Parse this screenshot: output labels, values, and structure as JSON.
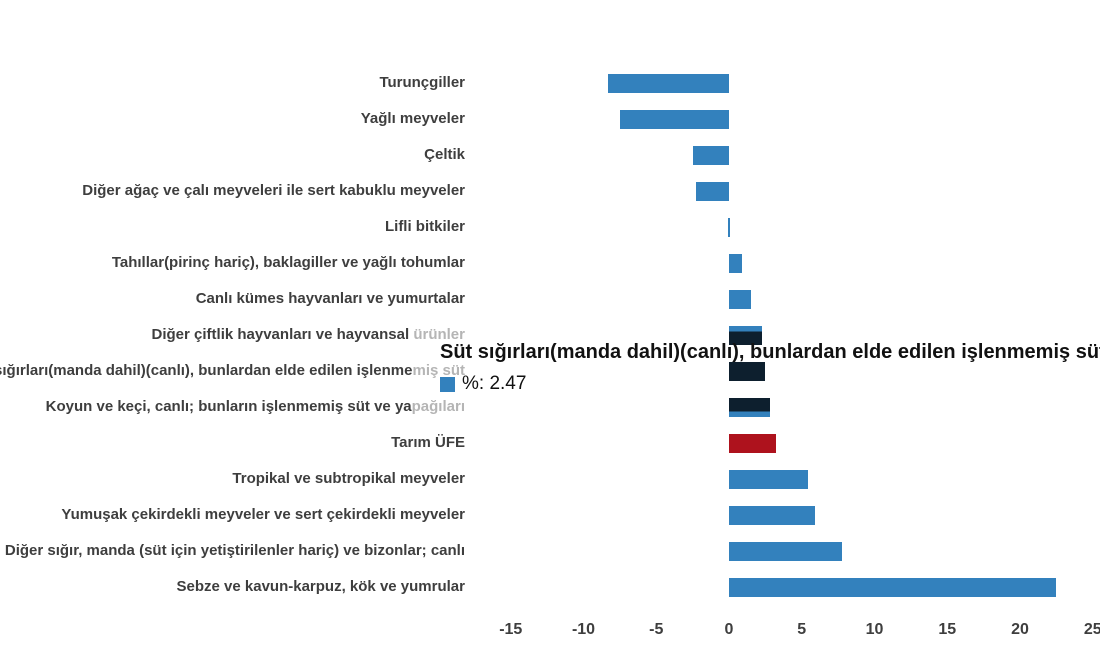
{
  "chart_data": {
    "type": "bar",
    "orientation": "horizontal",
    "unit": "%",
    "title": "",
    "xlabel": "",
    "ylabel": "",
    "xlim": [
      -15.8,
      25.5
    ],
    "grid": false,
    "legend": false,
    "x_ticks": [
      "-15",
      "-10",
      "-5",
      "0",
      "5",
      "10",
      "15",
      "20",
      "25"
    ],
    "x_tick_values": [
      -15,
      -10,
      -5,
      0,
      5,
      10,
      15,
      20,
      25
    ],
    "bars": [
      {
        "label": "Turunçgiller",
        "value": -8.3
      },
      {
        "label": "Yağlı meyveler",
        "value": -7.5
      },
      {
        "label": "Çeltik",
        "value": -2.5
      },
      {
        "label": "Diğer ağaç ve çalı meyveleri ile sert kabuklu meyveler",
        "value": -2.25
      },
      {
        "label": "Lifli bitkiler",
        "value": -0.1
      },
      {
        "label": "Tahıllar(pirinç hariç), baklagiller ve yağlı tohumlar",
        "value": 0.9
      },
      {
        "label": "Canlı kümes hayvanları ve yumurtalar",
        "value": 1.5
      },
      {
        "label": "Diğer çiftlik hayvanları ve hayvansal ",
        "label_faded": "ürünler",
        "value": 2.3,
        "shade": "bottom"
      },
      {
        "label": "Süt sığırları(manda dahil)(canlı), bunlardan elde edilen işlenme",
        "label_faded": "miş süt",
        "value": 2.47,
        "shade": "full"
      },
      {
        "label": "Koyun ve keçi, canlı; bunların işlenmemiş süt ve ya",
        "label_faded": "pağıları",
        "value": 2.8,
        "shade": "top"
      },
      {
        "label": "Tarım ÜFE",
        "value": 3.2,
        "color_role": "highlight"
      },
      {
        "label": "Tropikal ve subtropikal meyveler",
        "value": 5.45
      },
      {
        "label": "Yumuşak çekirdekli meyveler ve sert çekirdekli meyveler",
        "value": 5.9
      },
      {
        "label": "Diğer sığır, manda (süt için yetiştirilenler hariç) ve bizonlar; canlı",
        "value": 7.75
      },
      {
        "label": "Sebze ve kavun-karpuz, kök ve yumrular",
        "value": 22.5
      }
    ]
  },
  "tooltip": {
    "title": "Süt sığırları(manda dahil)(canlı), bunlardan elde edilen işlenmemiş süt",
    "value_text": "%: 2.47",
    "swatch_color": "#3381bd"
  },
  "colors": {
    "bar_blue": "#3381bd",
    "bar_red": "#ae121d",
    "bar_dimmed_dark": "#0d1f2e",
    "axis_label": "#3e3e3e",
    "faded_label": "#b5b5b5",
    "tooltip_text": "#111111"
  }
}
